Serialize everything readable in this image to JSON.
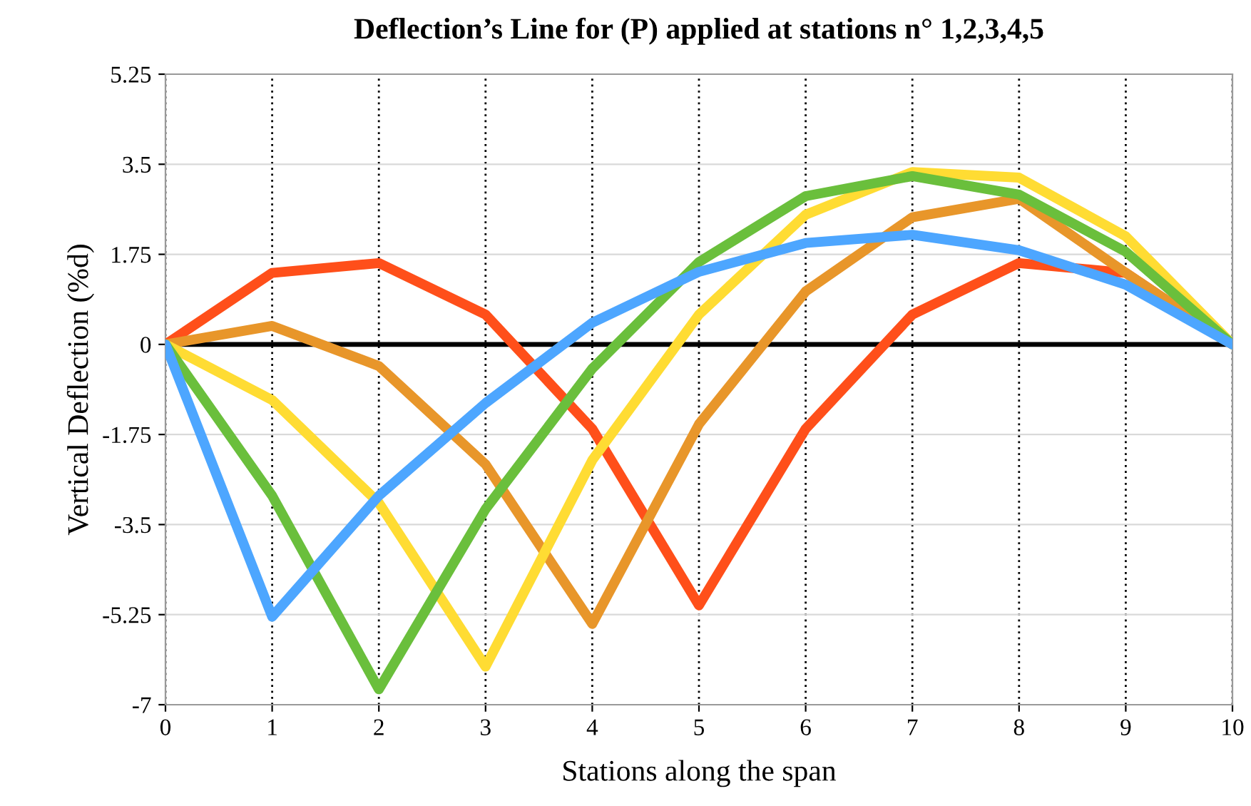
{
  "chart_data": {
    "type": "line",
    "title": "Deflection’s Line for (P) applied at stations n° 1,2,3,4,5",
    "xlabel": "Stations along the span",
    "ylabel": "Vertical Deflection (%d)",
    "x": [
      0,
      1,
      2,
      3,
      4,
      5,
      6,
      7,
      8,
      9,
      10
    ],
    "series": [
      {
        "color": "#ff4f1a",
        "values": [
          0,
          1.39,
          1.58,
          0.58,
          -1.64,
          -5.07,
          -1.64,
          0.58,
          1.58,
          1.39,
          0
        ]
      },
      {
        "color": "#e8962a",
        "values": [
          0,
          0.36,
          -0.42,
          -2.33,
          -5.43,
          -1.55,
          1.03,
          2.47,
          2.83,
          1.39,
          0
        ]
      },
      {
        "color": "#ffdc33",
        "values": [
          0,
          -1.08,
          -3.08,
          -6.26,
          -2.25,
          0.58,
          2.52,
          3.35,
          3.24,
          2.1,
          0
        ]
      },
      {
        "color": "#6abf3c",
        "values": [
          0,
          -2.94,
          -6.7,
          -3.2,
          -0.47,
          1.6,
          2.88,
          3.27,
          2.91,
          1.8,
          0
        ]
      },
      {
        "color": "#4da6ff",
        "values": [
          0,
          -5.29,
          -2.94,
          -1.14,
          0.42,
          1.41,
          1.97,
          2.13,
          1.83,
          1.16,
          0
        ]
      }
    ],
    "xlim": [
      0,
      10
    ],
    "xticks": [
      0,
      1,
      2,
      3,
      4,
      5,
      6,
      7,
      8,
      9,
      10
    ],
    "ylim": [
      -7,
      5.25
    ],
    "yticks": [
      -7,
      -5.25,
      -3.5,
      -1.75,
      0,
      1.75,
      3.5,
      5.25
    ],
    "ref_lines": [
      {
        "axis": "y",
        "value": 0,
        "color": "#000000"
      }
    ],
    "grid": true,
    "legend": false,
    "marker": "none",
    "line_style": "solid"
  }
}
